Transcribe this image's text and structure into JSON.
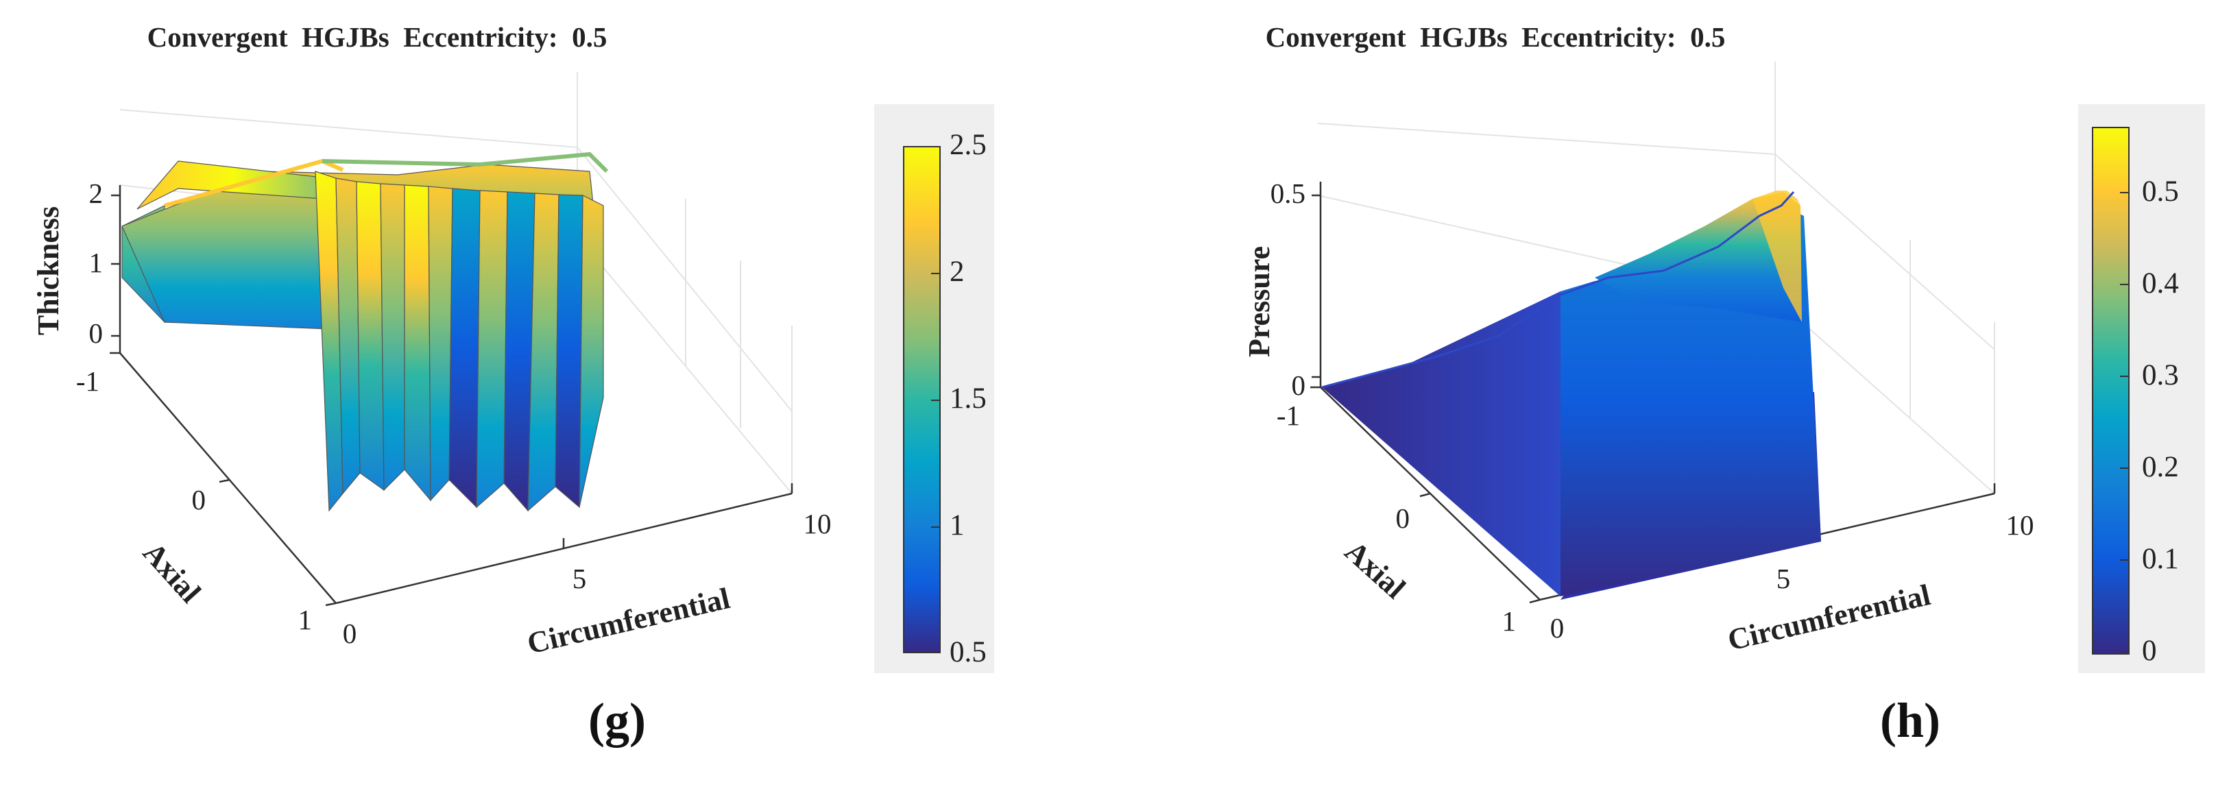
{
  "panels": [
    {
      "title": "Convergent  HGJBs  Eccentricity:  0.5",
      "caption": "(g)",
      "chart_data": {
        "type": "surface",
        "xlabel": "Circumferential",
        "ylabel": "Axial",
        "zlabel": "Thickness",
        "xlim": [
          0,
          10
        ],
        "ylim": [
          -1,
          1
        ],
        "zlim": [
          0,
          2.5
        ],
        "x_ticks": [
          "0",
          "5",
          "10"
        ],
        "y_ticks": [
          "-1",
          "0",
          "1"
        ],
        "z_ticks": [
          "0",
          "1",
          "2"
        ],
        "colorbar": {
          "range": [
            0.5,
            2.5
          ],
          "ticks": [
            "2.5",
            "2",
            "1.5",
            "1",
            "0.5"
          ]
        },
        "grooves": 12,
        "approx_profile": {
          "circumferential": [
            0,
            1,
            2,
            3,
            3.5,
            4,
            5,
            6,
            7
          ],
          "thickness_ridge": [
            2.1,
            2.3,
            2.5,
            2.45,
            2.3,
            2.2,
            2.15,
            2.1,
            2.0
          ],
          "thickness_groove": [
            1.5,
            1.4,
            1.2,
            1.0,
            0.9,
            0.8,
            0.6,
            0.5,
            0.55
          ]
        }
      }
    },
    {
      "title": "Convergent  HGJBs  Eccentricity:  0.5",
      "caption": "(h)",
      "chart_data": {
        "type": "surface",
        "xlabel": "Circumferential",
        "ylabel": "Axial",
        "zlabel": "Pressure",
        "xlim": [
          0,
          10
        ],
        "ylim": [
          -1,
          1
        ],
        "zlim": [
          0,
          0.55
        ],
        "x_ticks": [
          "0",
          "5",
          "10"
        ],
        "y_ticks": [
          "-1",
          "0",
          "1"
        ],
        "z_ticks": [
          "0",
          "0.5"
        ],
        "colorbar": {
          "range": [
            0,
            0.57
          ],
          "ticks": [
            "0.5",
            "0.4",
            "0.3",
            "0.2",
            "0.1",
            "0"
          ]
        },
        "approx_profile": {
          "circumferential": [
            0,
            1,
            2,
            3,
            4,
            4.8,
            5.3,
            6
          ],
          "pressure_peak": [
            0.0,
            0.05,
            0.12,
            0.2,
            0.3,
            0.45,
            0.55,
            0.0
          ]
        }
      }
    }
  ],
  "colors": {
    "parula": [
      "#352a87",
      "#0f5cdd",
      "#1481d6",
      "#06a4ca",
      "#2eb7a4",
      "#87bf77",
      "#d1bb59",
      "#fec832",
      "#f9fb0e"
    ],
    "axis": "#222222",
    "grid": "#e6e6e6",
    "colorbar_bg": "#efefef"
  }
}
